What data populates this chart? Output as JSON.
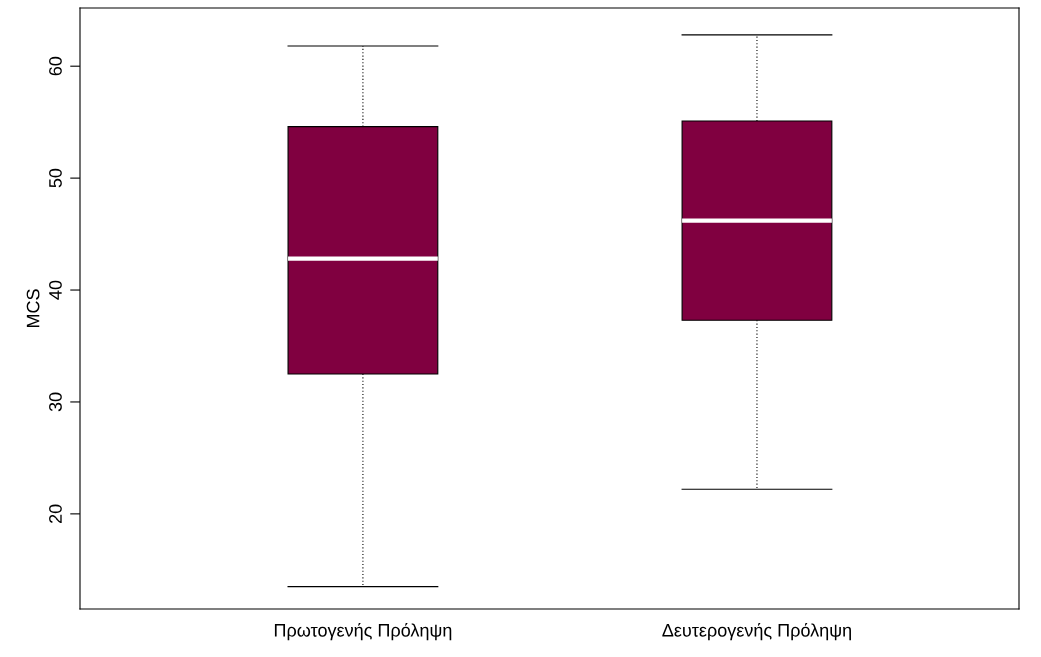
{
  "chart_data": {
    "type": "box",
    "ylabel": "MCS",
    "categories": [
      "Πρωτογενής Πρόληψη",
      "Δευτερογενής Πρόληψη"
    ],
    "series": [
      {
        "color": "#800040",
        "boxes": [
          {
            "low": 13.5,
            "q1": 32.5,
            "median": 42.8,
            "q3": 54.6,
            "high": 61.8
          },
          {
            "low": 22.2,
            "q1": 37.3,
            "median": 46.2,
            "q3": 55.1,
            "high": 62.8
          }
        ]
      }
    ],
    "ylim": [
      11.5,
      65.2
    ],
    "yticks": [
      20,
      30,
      40,
      50,
      60
    ],
    "grid": false,
    "legend": false
  }
}
